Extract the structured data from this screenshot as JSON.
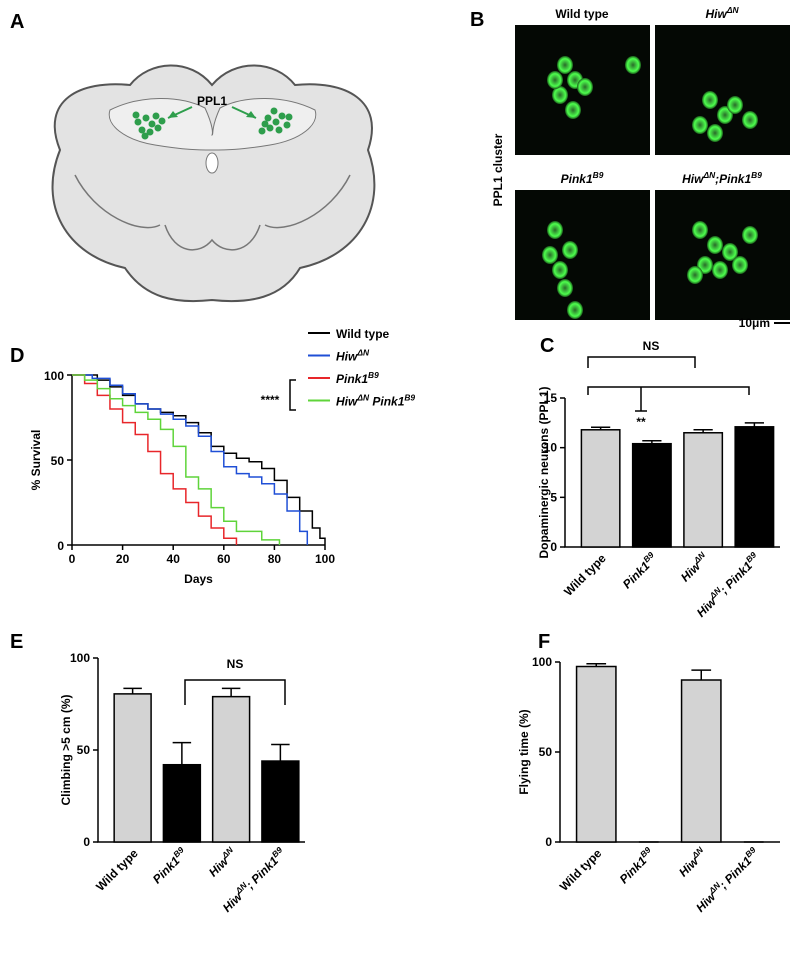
{
  "panel_labels": [
    "A",
    "B",
    "C",
    "D",
    "E",
    "F"
  ],
  "diagram": {
    "label": "PPL1"
  },
  "images": {
    "titles": [
      [
        "Wild type"
      ],
      [
        "Hiw",
        "ΔN"
      ],
      [
        "Pink1",
        "B9"
      ],
      [
        "Hiw",
        "ΔN",
        ";Pink1",
        "B9"
      ]
    ],
    "side_label": "PPL1 cluster",
    "scale_label": "10μm"
  },
  "chart_data": [
    {
      "type": "line",
      "step": true,
      "xlabel": "Days",
      "ylabel": "% Survival",
      "xlim": [
        0,
        100
      ],
      "ylim": [
        0,
        100
      ],
      "xticks": [
        0,
        20,
        40,
        60,
        80,
        100
      ],
      "yticks": [
        0,
        50,
        100
      ],
      "annotation": "****",
      "series": [
        {
          "name": [
            "Wild type"
          ],
          "color": "#000000",
          "x": [
            0,
            5,
            10,
            15,
            20,
            25,
            30,
            35,
            40,
            45,
            50,
            55,
            60,
            65,
            70,
            75,
            80,
            85,
            90,
            95,
            98,
            100
          ],
          "values": [
            100,
            100,
            97,
            93,
            88,
            83,
            80,
            78,
            76,
            72,
            66,
            58,
            54,
            51,
            49,
            45,
            38,
            28,
            20,
            10,
            4,
            0
          ]
        },
        {
          "name": [
            "Hiw",
            "ΔN"
          ],
          "color": "#1f4fd6",
          "x": [
            0,
            8,
            15,
            20,
            25,
            30,
            35,
            40,
            45,
            50,
            55,
            60,
            65,
            70,
            75,
            80,
            85,
            90,
            93
          ],
          "values": [
            100,
            98,
            94,
            89,
            83,
            80,
            77,
            74,
            70,
            64,
            55,
            46,
            42,
            40,
            36,
            30,
            20,
            8,
            0
          ]
        },
        {
          "name": [
            "Pink1",
            "B9"
          ],
          "color": "#e8262a",
          "x": [
            0,
            5,
            10,
            15,
            20,
            25,
            30,
            35,
            40,
            45,
            50,
            55,
            60,
            65
          ],
          "values": [
            100,
            95,
            88,
            80,
            72,
            65,
            55,
            42,
            33,
            25,
            17,
            10,
            4,
            0
          ]
        },
        {
          "name": [
            "Hiw",
            "ΔN",
            " Pink1",
            "B9"
          ],
          "color": "#5fd43a",
          "x": [
            0,
            5,
            10,
            15,
            20,
            25,
            30,
            35,
            40,
            45,
            50,
            55,
            60,
            65,
            75,
            82
          ],
          "values": [
            100,
            97,
            92,
            86,
            82,
            78,
            74,
            68,
            58,
            40,
            33,
            22,
            14,
            8,
            3,
            0
          ]
        }
      ]
    },
    {
      "type": "bar",
      "ylabel": "Dopaminergic neurons (PPL1)",
      "categories": [
        [
          "Wild type"
        ],
        [
          "Pink1",
          "B9"
        ],
        [
          "Hiw",
          "ΔN"
        ],
        [
          "Hiw",
          "ΔN",
          "; Pink1",
          "B9"
        ]
      ],
      "values": [
        11.8,
        10.4,
        11.5,
        12.1
      ],
      "errors": [
        0.25,
        0.3,
        0.3,
        0.4
      ],
      "colors": [
        "#d3d3d3",
        "#000000",
        "#d3d3d3",
        "#000000"
      ],
      "ylim": [
        0,
        15
      ],
      "yticks": [
        0,
        5,
        10,
        15
      ],
      "annotations": [
        "NS",
        "**"
      ]
    },
    {
      "type": "bar",
      "ylabel": "Climbing >5 cm (%)",
      "categories": [
        [
          "Wild type"
        ],
        [
          "Pink1",
          "B9"
        ],
        [
          "Hiw",
          "ΔN"
        ],
        [
          "Hiw",
          "ΔN",
          "; Pink1",
          "B9"
        ]
      ],
      "values": [
        80.5,
        42,
        79,
        44
      ],
      "errors": [
        3,
        12,
        4.5,
        9
      ],
      "colors": [
        "#d3d3d3",
        "#000000",
        "#d3d3d3",
        "#000000"
      ],
      "ylim": [
        0,
        100
      ],
      "yticks": [
        0,
        50,
        100
      ],
      "annotations": [
        "NS"
      ]
    },
    {
      "type": "bar",
      "ylabel": "Flying time (%)",
      "categories": [
        [
          "Wild type"
        ],
        [
          "Pink1",
          "B9"
        ],
        [
          "Hiw",
          "ΔN"
        ],
        [
          "Hiw",
          "ΔN",
          "; Pink1",
          "B9"
        ]
      ],
      "values": [
        97.5,
        0,
        90,
        0
      ],
      "errors": [
        1.5,
        0,
        5.5,
        0
      ],
      "colors": [
        "#d3d3d3",
        "#000000",
        "#d3d3d3",
        "#000000"
      ],
      "ylim": [
        0,
        100
      ],
      "yticks": [
        0,
        50,
        100
      ]
    }
  ]
}
